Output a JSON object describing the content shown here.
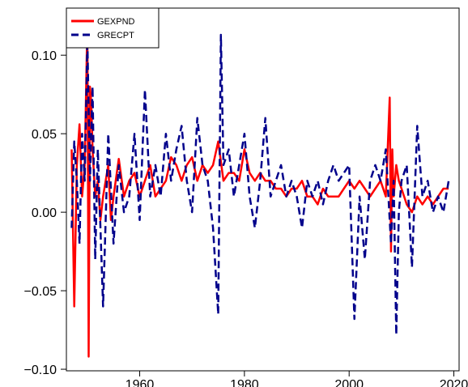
{
  "chart_data": {
    "type": "line",
    "title": "",
    "xlabel": "",
    "ylabel": "",
    "xlim": [
      1946,
      2021
    ],
    "ylim": [
      -0.101,
      0.13
    ],
    "x_ticks": [
      1960,
      1980,
      2000,
      2020
    ],
    "x_tick_labels": [
      "1960",
      "1980",
      "2000",
      "2020"
    ],
    "y_ticks": [
      -0.1,
      -0.05,
      0.0,
      0.05,
      0.1
    ],
    "y_tick_labels": [
      "−0.10",
      "−0.05",
      "0.00",
      "0.05",
      "0.10"
    ],
    "grid": false,
    "legend_position": "top-left",
    "series": [
      {
        "name": "GEXPND",
        "color": "#ff0000",
        "dash": "solid",
        "x": [
          1947.0,
          1947.5,
          1948.0,
          1948.5,
          1949.0,
          1949.5,
          1950.0,
          1950.25,
          1950.5,
          1950.75,
          1951.0,
          1951.5,
          1952.0,
          1952.5,
          1953.0,
          1953.5,
          1954.0,
          1954.5,
          1955.0,
          1956.0,
          1957.0,
          1958.0,
          1959.0,
          1960.0,
          1961.0,
          1962.0,
          1963.0,
          1964.0,
          1965.0,
          1966.0,
          1967.0,
          1968.0,
          1969.0,
          1970.0,
          1971.0,
          1972.0,
          1973.0,
          1974.0,
          1975.0,
          1976.0,
          1977.0,
          1978.0,
          1979.0,
          1980.0,
          1981.0,
          1982.0,
          1983.0,
          1984.0,
          1985.0,
          1986.0,
          1987.0,
          1988.0,
          1989.0,
          1990.0,
          1991.0,
          1992.0,
          1993.0,
          1994.0,
          1995.0,
          1996.0,
          1997.0,
          1998.0,
          1999.0,
          2000.0,
          2001.0,
          2002.0,
          2003.0,
          2004.0,
          2005.0,
          2006.0,
          2007.0,
          2007.75,
          2008.0,
          2008.25,
          2008.5,
          2009.0,
          2009.5,
          2010.0,
          2011.0,
          2012.0,
          2013.0,
          2014.0,
          2015.0,
          2016.0,
          2017.0,
          2018.0,
          2019.0
        ],
        "values": [
          0.04,
          -0.06,
          0.03,
          0.056,
          0.01,
          0.03,
          0.121,
          -0.092,
          0.08,
          0.07,
          0.04,
          0.01,
          0.02,
          -0.005,
          0.01,
          0.02,
          0.03,
          -0.005,
          0.01,
          0.034,
          0.01,
          0.02,
          0.025,
          0.01,
          0.02,
          0.03,
          0.01,
          0.015,
          0.02,
          0.035,
          0.03,
          0.02,
          0.03,
          0.035,
          0.02,
          0.03,
          0.025,
          0.03,
          0.045,
          0.02,
          0.025,
          0.025,
          0.02,
          0.04,
          0.025,
          0.02,
          0.025,
          0.02,
          0.02,
          0.015,
          0.015,
          0.01,
          0.015,
          0.015,
          0.02,
          0.01,
          0.01,
          0.005,
          0.015,
          0.01,
          0.01,
          0.01,
          0.015,
          0.02,
          0.015,
          0.02,
          0.015,
          0.01,
          0.015,
          0.02,
          0.01,
          0.073,
          -0.025,
          0.04,
          0.01,
          0.03,
          0.02,
          0.015,
          0.005,
          0.0,
          0.01,
          0.005,
          0.01,
          0.005,
          0.01,
          0.015,
          0.015
        ]
      },
      {
        "name": "GRECPT",
        "color": "#00008b",
        "dash": "dashed",
        "x": [
          1947.0,
          1947.5,
          1948.0,
          1948.5,
          1949.0,
          1949.5,
          1950.0,
          1950.5,
          1951.0,
          1951.5,
          1952.0,
          1953.0,
          1954.0,
          1955.0,
          1956.0,
          1957.0,
          1958.0,
          1959.0,
          1960.0,
          1961.0,
          1962.0,
          1963.0,
          1964.0,
          1965.0,
          1966.0,
          1967.0,
          1968.0,
          1969.0,
          1970.0,
          1971.0,
          1972.0,
          1973.0,
          1974.0,
          1975.0,
          1975.5,
          1976.0,
          1977.0,
          1978.0,
          1979.0,
          1980.0,
          1981.0,
          1982.0,
          1983.0,
          1984.0,
          1985.0,
          1986.0,
          1987.0,
          1988.0,
          1989.0,
          1990.0,
          1991.0,
          1992.0,
          1993.0,
          1994.0,
          1995.0,
          1996.0,
          1997.0,
          1998.0,
          1999.0,
          2000.0,
          2001.0,
          2002.0,
          2003.0,
          2004.0,
          2005.0,
          2006.0,
          2007.0,
          2008.0,
          2008.5,
          2009.0,
          2009.5,
          2010.0,
          2011.0,
          2012.0,
          2013.0,
          2014.0,
          2015.0,
          2016.0,
          2017.0,
          2018.0,
          2019.0
        ],
        "values": [
          -0.01,
          0.045,
          0.02,
          -0.02,
          0.05,
          0.02,
          0.11,
          0.02,
          0.08,
          -0.03,
          0.04,
          -0.06,
          0.05,
          -0.02,
          0.03,
          0.0,
          0.01,
          0.05,
          -0.005,
          0.078,
          0.01,
          0.03,
          0.01,
          0.05,
          0.02,
          0.04,
          0.055,
          0.02,
          0.0,
          0.06,
          0.03,
          0.02,
          -0.01,
          -0.065,
          0.113,
          0.03,
          0.04,
          0.01,
          0.03,
          0.05,
          0.01,
          -0.01,
          0.02,
          0.06,
          0.01,
          0.02,
          0.03,
          0.01,
          0.02,
          0.01,
          -0.01,
          0.02,
          0.01,
          0.02,
          0.005,
          0.02,
          0.03,
          0.02,
          0.025,
          0.03,
          -0.068,
          0.01,
          -0.03,
          0.02,
          0.03,
          0.02,
          0.04,
          -0.02,
          0.02,
          -0.078,
          0.0,
          0.02,
          0.03,
          -0.035,
          0.055,
          0.01,
          0.02,
          0.0,
          0.01,
          0.0,
          0.02
        ]
      }
    ]
  }
}
